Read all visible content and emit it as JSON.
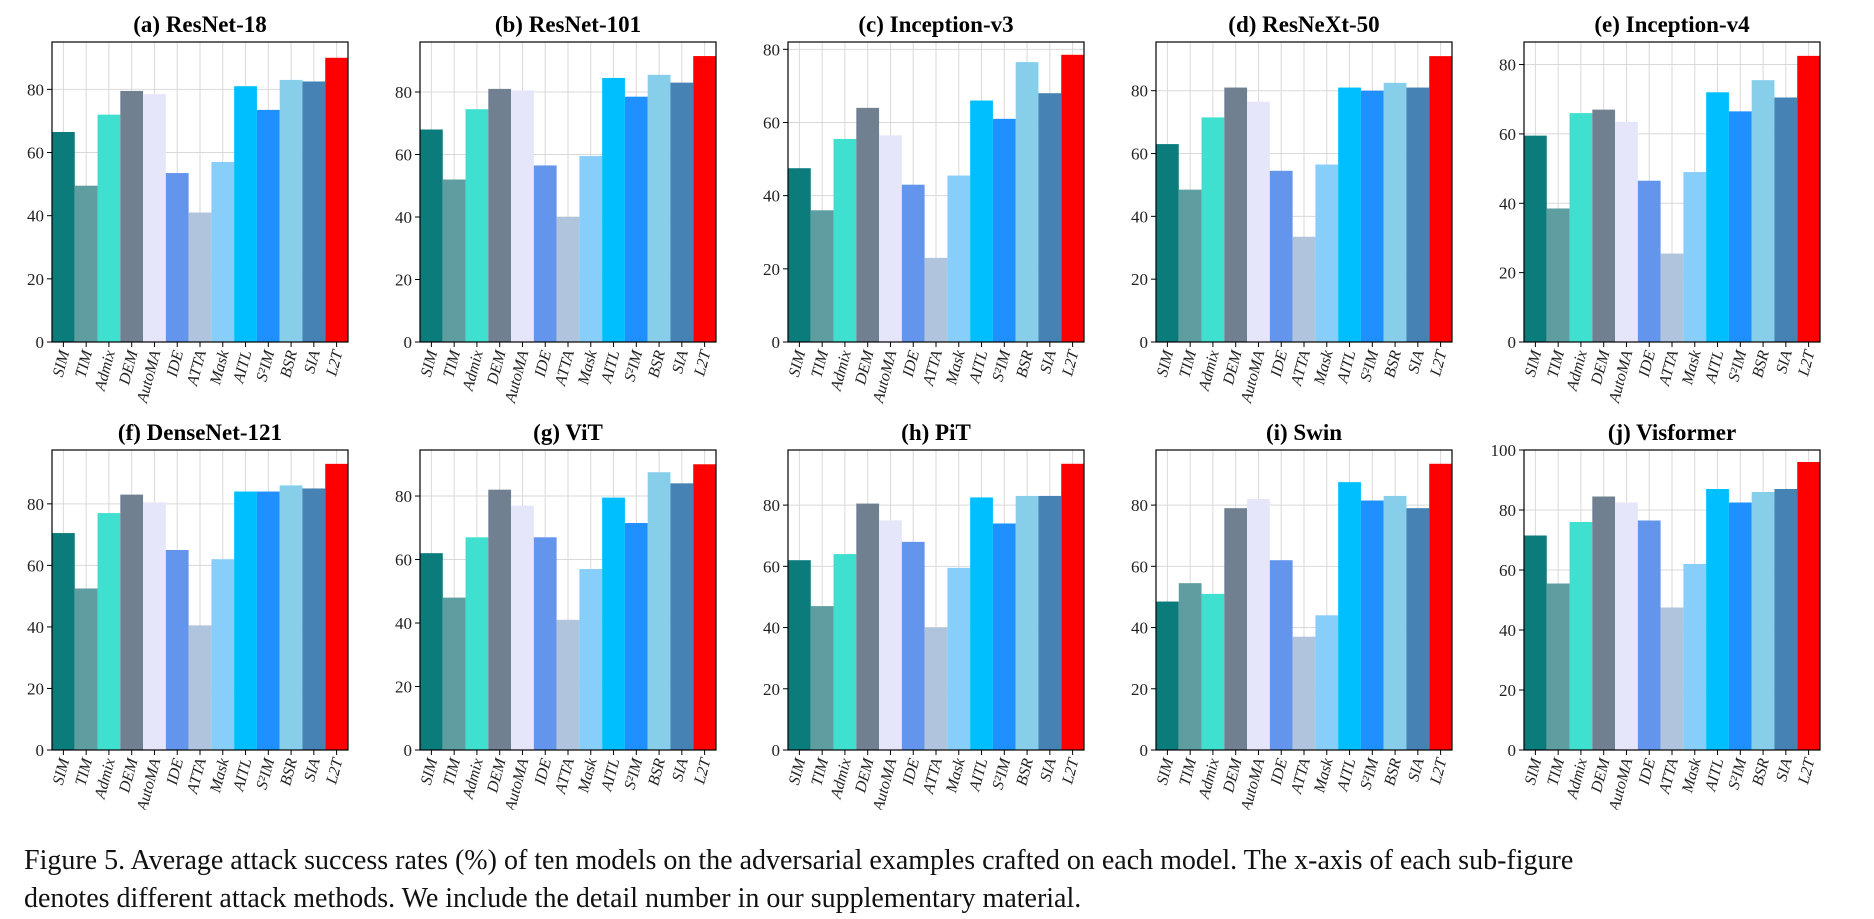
{
  "figure": {
    "caption_line1": "Figure 5. Average attack success rates (%) of ten models on the adversarial examples crafted on each model. The x-axis of each sub-figure",
    "caption_line2": "denotes different attack methods. We include the detail number in our supplementary material."
  },
  "colors": {
    "SIM": "#0b7b7b",
    "TIM": "#5f9ea0",
    "Admix": "#40e0d0",
    "DEM": "#708090",
    "AutoMA": "#e6e6fa",
    "IDE": "#6495ed",
    "ATTA": "#b0c4de",
    "Mask": "#87cefa",
    "AITL": "#00bfff",
    "S2IM": "#1e90ff",
    "BSR": "#87ceeb",
    "SIA": "#4682b4",
    "L2T": "#ff0000"
  },
  "chart_data": [
    {
      "type": "bar",
      "title": "(a) ResNet-18",
      "categories": [
        "SIM",
        "TIM",
        "Admix",
        "DEM",
        "AutoMA",
        "IDE",
        "ATTA",
        "Mask",
        "AITL",
        "S²IM",
        "BSR",
        "SIA",
        "L2T"
      ],
      "values": [
        66.5,
        49.5,
        72,
        79.5,
        78.5,
        53.5,
        41,
        57,
        81,
        73.5,
        83,
        82.5,
        90
      ],
      "ylim": [
        0,
        95
      ],
      "yticks": [
        0,
        20,
        40,
        60,
        80
      ],
      "xlabel": "",
      "ylabel": "",
      "grid": true
    },
    {
      "type": "bar",
      "title": "(b) ResNet-101",
      "categories": [
        "SIM",
        "TIM",
        "Admix",
        "DEM",
        "AutoMA",
        "IDE",
        "ATTA",
        "Mask",
        "AITL",
        "S²IM",
        "BSR",
        "SIA",
        "L2T"
      ],
      "values": [
        68,
        52,
        74.5,
        81,
        80.5,
        56.5,
        40,
        59.5,
        84.5,
        78.5,
        85.5,
        83,
        91.5
      ],
      "ylim": [
        0,
        96
      ],
      "yticks": [
        0,
        20,
        40,
        60,
        80
      ],
      "xlabel": "",
      "ylabel": "",
      "grid": true
    },
    {
      "type": "bar",
      "title": "(c) Inception-v3",
      "categories": [
        "SIM",
        "TIM",
        "Admix",
        "DEM",
        "AutoMA",
        "IDE",
        "ATTA",
        "Mask",
        "AITL",
        "S²IM",
        "BSR",
        "SIA",
        "L2T"
      ],
      "values": [
        47.5,
        36,
        55.5,
        64,
        56.5,
        43,
        23,
        45.5,
        66,
        61,
        76.5,
        68,
        78.5
      ],
      "ylim": [
        0,
        82
      ],
      "yticks": [
        0,
        20,
        40,
        60,
        80
      ],
      "xlabel": "",
      "ylabel": "",
      "grid": true
    },
    {
      "type": "bar",
      "title": "(d) ResNeXt-50",
      "categories": [
        "SIM",
        "TIM",
        "Admix",
        "DEM",
        "AutoMA",
        "IDE",
        "ATTA",
        "Mask",
        "AITL",
        "S²IM",
        "BSR",
        "SIA",
        "L2T"
      ],
      "values": [
        63,
        48.5,
        71.5,
        81,
        76.5,
        54.5,
        33.5,
        56.5,
        81,
        80,
        82.5,
        81,
        91
      ],
      "ylim": [
        0,
        95.5
      ],
      "yticks": [
        0,
        20,
        40,
        60,
        80
      ],
      "xlabel": "",
      "ylabel": "",
      "grid": true
    },
    {
      "type": "bar",
      "title": "(e) Inception-v4",
      "categories": [
        "SIM",
        "TIM",
        "Admix",
        "DEM",
        "AutoMA",
        "IDE",
        "ATTA",
        "Mask",
        "AITL",
        "S²IM",
        "BSR",
        "SIA",
        "L2T"
      ],
      "values": [
        59.5,
        38.5,
        66,
        67,
        63.5,
        46.5,
        25.5,
        49,
        72,
        66.5,
        75.5,
        70.5,
        82.5
      ],
      "ylim": [
        0,
        86.5
      ],
      "yticks": [
        0,
        20,
        40,
        60,
        80
      ],
      "xlabel": "",
      "ylabel": "",
      "grid": true
    },
    {
      "type": "bar",
      "title": "(f) DenseNet-121",
      "categories": [
        "SIM",
        "TIM",
        "Admix",
        "DEM",
        "AutoMA",
        "IDE",
        "ATTA",
        "Mask",
        "AITL",
        "S²IM",
        "BSR",
        "SIA",
        "L2T"
      ],
      "values": [
        70.5,
        52.5,
        77,
        83,
        80.5,
        65,
        40.5,
        62,
        84,
        84,
        86,
        85,
        93
      ],
      "ylim": [
        0,
        97.5
      ],
      "yticks": [
        0,
        20,
        40,
        60,
        80
      ],
      "xlabel": "",
      "ylabel": "",
      "grid": true
    },
    {
      "type": "bar",
      "title": "(g) ViT",
      "categories": [
        "SIM",
        "TIM",
        "Admix",
        "DEM",
        "AutoMA",
        "IDE",
        "ATTA",
        "Mask",
        "AITL",
        "S²IM",
        "BSR",
        "SIA",
        "L2T"
      ],
      "values": [
        62,
        48,
        67,
        82,
        77,
        67,
        41,
        57,
        79.5,
        71.5,
        87.5,
        84,
        90
      ],
      "ylim": [
        0,
        94.5
      ],
      "yticks": [
        0,
        20,
        40,
        60,
        80
      ],
      "xlabel": "",
      "ylabel": "",
      "grid": true
    },
    {
      "type": "bar",
      "title": "(h) PiT",
      "categories": [
        "SIM",
        "TIM",
        "Admix",
        "DEM",
        "AutoMA",
        "IDE",
        "ATTA",
        "Mask",
        "AITL",
        "S²IM",
        "BSR",
        "SIA",
        "L2T"
      ],
      "values": [
        62,
        47,
        64,
        80.5,
        75,
        68,
        40,
        59.5,
        82.5,
        74,
        83,
        83,
        93.5
      ],
      "ylim": [
        0,
        98
      ],
      "yticks": [
        0,
        20,
        40,
        60,
        80
      ],
      "xlabel": "",
      "ylabel": "",
      "grid": true
    },
    {
      "type": "bar",
      "title": "(i) Swin",
      "categories": [
        "SIM",
        "TIM",
        "Admix",
        "DEM",
        "AutoMA",
        "IDE",
        "ATTA",
        "Mask",
        "AITL",
        "S²IM",
        "BSR",
        "SIA",
        "L2T"
      ],
      "values": [
        48.5,
        54.5,
        51,
        79,
        82,
        62,
        37,
        44,
        87.5,
        81.5,
        83,
        79,
        93.5
      ],
      "ylim": [
        0,
        98
      ],
      "yticks": [
        0,
        20,
        40,
        60,
        80
      ],
      "xlabel": "",
      "ylabel": "",
      "grid": true
    },
    {
      "type": "bar",
      "title": "(j) Visformer",
      "categories": [
        "SIM",
        "TIM",
        "Admix",
        "DEM",
        "AutoMA",
        "IDE",
        "ATTA",
        "Mask",
        "AITL",
        "S²IM",
        "BSR",
        "SIA",
        "L2T"
      ],
      "values": [
        71.5,
        55.5,
        76,
        84.5,
        82.5,
        76.5,
        47.5,
        62,
        87,
        82.5,
        86,
        87,
        96
      ],
      "ylim": [
        0,
        100
      ],
      "yticks": [
        0,
        20,
        40,
        60,
        80,
        100
      ],
      "xlabel": "",
      "ylabel": "",
      "grid": true
    }
  ]
}
